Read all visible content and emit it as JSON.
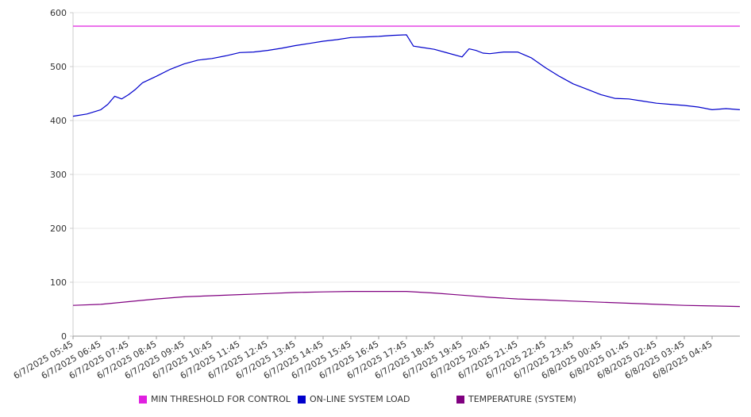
{
  "chart_data": {
    "type": "line",
    "title": "",
    "xlabel": "",
    "ylabel": "",
    "ylim": [
      0,
      600
    ],
    "yticks": [
      0,
      100,
      200,
      300,
      400,
      500,
      600
    ],
    "grid": true,
    "legend_position": "bottom",
    "x_tick_labels": [
      "6/7/2025 05:45",
      "6/7/2025 06:45",
      "6/7/2025 07:45",
      "6/7/2025 08:45",
      "6/7/2025 09:45",
      "6/7/2025 10:45",
      "6/7/2025 11:45",
      "6/7/2025 12:45",
      "6/7/2025 13:45",
      "6/7/2025 14:45",
      "6/7/2025 15:45",
      "6/7/2025 16:45",
      "6/7/2025 17:45",
      "6/7/2025 18:45",
      "6/7/2025 19:45",
      "6/7/2025 20:45",
      "6/7/2025 21:45",
      "6/7/2025 22:45",
      "6/7/2025 23:45",
      "6/8/2025 00:45",
      "6/8/2025 01:45",
      "6/8/2025 02:45",
      "6/8/2025 03:45",
      "6/8/2025 04:45"
    ],
    "x_start": "6/7/2025 05:45",
    "x_end": "6/8/2025 05:45",
    "series": [
      {
        "name": "MIN THRESHOLD FOR CONTROL",
        "color": "#e020e0",
        "x": [
          "6/7/2025 05:45",
          "6/8/2025 05:45"
        ],
        "values": [
          575,
          575
        ]
      },
      {
        "name": "ON-LINE SYSTEM LOAD",
        "color": "#0000cc",
        "x": [
          "6/7/2025 05:45",
          "6/7/2025 06:15",
          "6/7/2025 06:45",
          "6/7/2025 07:00",
          "6/7/2025 07:15",
          "6/7/2025 07:30",
          "6/7/2025 07:45",
          "6/7/2025 08:00",
          "6/7/2025 08:15",
          "6/7/2025 08:45",
          "6/7/2025 09:15",
          "6/7/2025 09:45",
          "6/7/2025 10:15",
          "6/7/2025 10:45",
          "6/7/2025 11:15",
          "6/7/2025 11:45",
          "6/7/2025 12:15",
          "6/7/2025 12:45",
          "6/7/2025 13:15",
          "6/7/2025 13:45",
          "6/7/2025 14:15",
          "6/7/2025 14:45",
          "6/7/2025 15:15",
          "6/7/2025 15:45",
          "6/7/2025 16:15",
          "6/7/2025 16:45",
          "6/7/2025 17:15",
          "6/7/2025 17:45",
          "6/7/2025 18:00",
          "6/7/2025 18:15",
          "6/7/2025 18:45",
          "6/7/2025 19:15",
          "6/7/2025 19:45",
          "6/7/2025 20:00",
          "6/7/2025 20:15",
          "6/7/2025 20:30",
          "6/7/2025 20:45",
          "6/7/2025 21:15",
          "6/7/2025 21:45",
          "6/7/2025 22:15",
          "6/7/2025 22:45",
          "6/7/2025 23:15",
          "6/7/2025 23:45",
          "6/8/2025 00:15",
          "6/8/2025 00:45",
          "6/8/2025 01:15",
          "6/8/2025 01:45",
          "6/8/2025 02:15",
          "6/8/2025 02:45",
          "6/8/2025 03:15",
          "6/8/2025 03:45",
          "6/8/2025 04:15",
          "6/8/2025 04:45",
          "6/8/2025 05:15",
          "6/8/2025 05:45"
        ],
        "values": [
          408,
          412,
          420,
          430,
          445,
          440,
          448,
          458,
          470,
          482,
          495,
          505,
          512,
          515,
          520,
          526,
          527,
          530,
          534,
          539,
          543,
          547,
          550,
          554,
          555,
          556,
          558,
          559,
          538,
          536,
          532,
          525,
          518,
          533,
          530,
          525,
          524,
          527,
          527,
          516,
          498,
          482,
          468,
          458,
          448,
          441,
          440,
          436,
          432,
          430,
          428,
          425,
          420,
          422,
          420
        ]
      },
      {
        "name": "TEMPERATURE (SYSTEM)",
        "color": "#800080",
        "x": [
          "6/7/2025 05:45",
          "6/7/2025 06:45",
          "6/7/2025 07:45",
          "6/7/2025 08:45",
          "6/7/2025 09:45",
          "6/7/2025 10:45",
          "6/7/2025 11:45",
          "6/7/2025 12:45",
          "6/7/2025 13:45",
          "6/7/2025 14:45",
          "6/7/2025 15:45",
          "6/7/2025 16:45",
          "6/7/2025 17:45",
          "6/7/2025 18:45",
          "6/7/2025 19:45",
          "6/7/2025 20:45",
          "6/7/2025 21:45",
          "6/7/2025 22:45",
          "6/7/2025 23:45",
          "6/8/2025 00:45",
          "6/8/2025 01:45",
          "6/8/2025 02:45",
          "6/8/2025 03:45",
          "6/8/2025 04:45",
          "6/8/2025 05:45"
        ],
        "values": [
          57,
          59,
          64,
          69,
          73,
          75,
          77,
          79,
          81,
          82,
          83,
          83,
          83,
          80,
          76,
          72,
          69,
          67,
          65,
          63,
          61,
          59,
          57,
          56,
          55
        ]
      }
    ]
  }
}
